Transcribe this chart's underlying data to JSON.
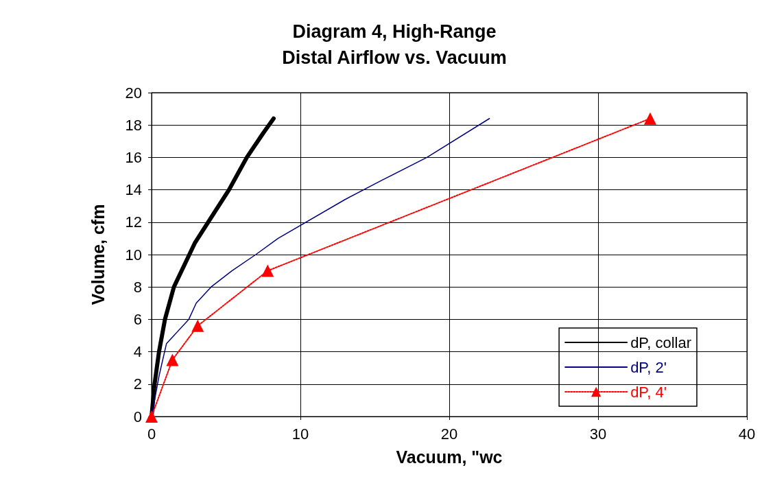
{
  "chart_data": {
    "type": "line",
    "title": "Diagram 4, High-Range\nDistal Airflow vs. Vacuum",
    "xlabel": "Vacuum, \"wc",
    "ylabel": "Volume, cfm",
    "xlim": [
      0,
      40
    ],
    "xticks": [
      0,
      10,
      20,
      30,
      40
    ],
    "ylim": [
      0,
      20
    ],
    "yticks": [
      0,
      2,
      4,
      6,
      8,
      10,
      12,
      14,
      16,
      18,
      20
    ],
    "grid": true,
    "legend": "bottom right",
    "series": [
      {
        "name": "dP, collar",
        "color": "#000000",
        "marker": "none",
        "line_style": "solid",
        "x": [
          0,
          0.2,
          0.5,
          0.9,
          1.5,
          2.9,
          3.8,
          5.2,
          6.4,
          7.5,
          8.2
        ],
        "values": [
          0,
          2,
          4,
          6,
          8,
          10.7,
          12,
          14,
          16,
          17.5,
          18.4
        ]
      },
      {
        "name": "dP, 2'",
        "color": "#000080",
        "marker": "none",
        "line_style": "solid",
        "x": [
          0,
          0.5,
          1,
          2.5,
          3,
          4,
          5.4,
          7,
          8.5,
          13,
          15.5,
          18.5,
          22.7
        ],
        "values": [
          0,
          2.5,
          4.5,
          6,
          7,
          8,
          9,
          10,
          11,
          13.4,
          14.6,
          16,
          18.4
        ]
      },
      {
        "name": "dP, 4'",
        "color": "#ff0000",
        "marker": "triangle",
        "line_style": "dotted",
        "x": [
          0,
          1.4,
          3.1,
          7.8,
          33.5
        ],
        "values": [
          0,
          3.5,
          5.6,
          9,
          18.4
        ]
      }
    ]
  }
}
